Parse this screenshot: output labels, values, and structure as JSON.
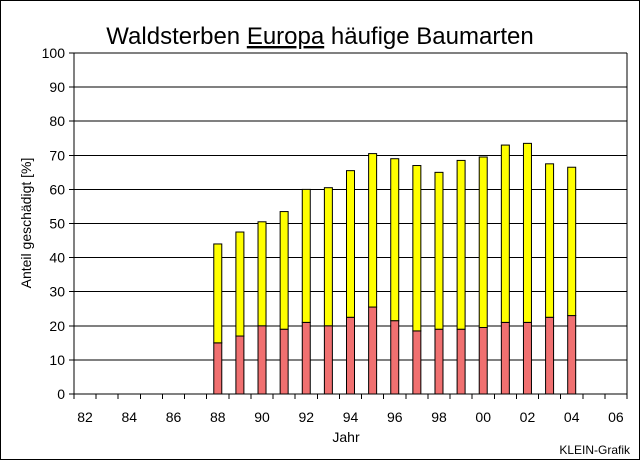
{
  "chart_data": {
    "type": "bar",
    "stacked": true,
    "title_prefix": "Waldsterben ",
    "title_underlined": "Europa",
    "title_suffix": " häufige Baumarten",
    "xlabel": "Jahr",
    "ylabel": "Anteil geschädigt [%]",
    "credit": "KLEIN-Grafik",
    "ylim": [
      0,
      100
    ],
    "yticks": [
      0,
      10,
      20,
      30,
      40,
      50,
      60,
      70,
      80,
      90,
      100
    ],
    "xlim": [
      1981.5,
      2006.5
    ],
    "xticks": [
      {
        "value": 1982,
        "label": "82"
      },
      {
        "value": 1984,
        "label": "84"
      },
      {
        "value": 1986,
        "label": "86"
      },
      {
        "value": 1988,
        "label": "88"
      },
      {
        "value": 1990,
        "label": "90"
      },
      {
        "value": 1992,
        "label": "92"
      },
      {
        "value": 1994,
        "label": "94"
      },
      {
        "value": 1996,
        "label": "96"
      },
      {
        "value": 1998,
        "label": "98"
      },
      {
        "value": 2000,
        "label": "00"
      },
      {
        "value": 2002,
        "label": "02"
      },
      {
        "value": 2004,
        "label": "04"
      },
      {
        "value": 2006,
        "label": "06"
      }
    ],
    "grid": true,
    "x": [
      1988,
      1989,
      1990,
      1991,
      1992,
      1993,
      1994,
      1995,
      1996,
      1997,
      1998,
      1999,
      2000,
      2001,
      2002,
      2003,
      2004
    ],
    "series": [
      {
        "color": "#f07070",
        "values": [
          15,
          17,
          20,
          19,
          21,
          20,
          22.5,
          25.5,
          21.5,
          18.5,
          19,
          19,
          19.5,
          21,
          21,
          22.5,
          23
        ]
      },
      {
        "color": "#ffff00",
        "values": [
          29,
          30.5,
          30.5,
          34.5,
          39,
          40.5,
          43,
          45,
          47.5,
          48.5,
          46,
          49.5,
          50,
          52,
          52.5,
          45,
          43.5
        ]
      }
    ],
    "colors": {
      "background": "#ffffff",
      "plot_background": "#ffffff",
      "gridline": "#000000",
      "bar_outline": "#000000"
    }
  }
}
